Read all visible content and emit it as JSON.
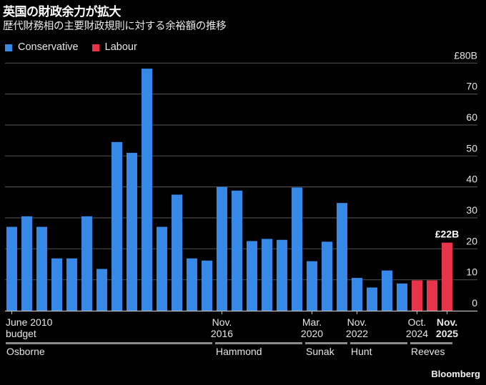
{
  "title": "英国の財政余力が拡大",
  "subtitle": "歴代財務相の主要財政規則に対する余裕額の推移",
  "source": "Bloomberg",
  "colors": {
    "Conservative": "#3689e6",
    "Labour": "#e8344a",
    "grid": "#4a4a4a",
    "axis": "#bfbfbf"
  },
  "chart_data": {
    "type": "bar",
    "title": "英国の財政余力が拡大",
    "subtitle": "歴代財務相の主要財政規則に対する余裕額の推移",
    "xlabel": "",
    "ylabel": "",
    "ylim": [
      0,
      80
    ],
    "yticks": [
      0,
      10,
      20,
      30,
      40,
      50,
      60,
      70,
      80
    ],
    "ytick_labels": [
      "0",
      "10",
      "20",
      "30",
      "40",
      "50",
      "60",
      "70",
      "£80B"
    ],
    "grid": true,
    "legend": {
      "placement": "top-left",
      "entries": [
        "Conservative",
        "Labour"
      ]
    },
    "values": [
      27.1,
      30.5,
      27.1,
      16.9,
      16.9,
      30.5,
      13.5,
      54.5,
      51.0,
      78.2,
      27.1,
      37.5,
      16.9,
      16.2,
      40.0,
      38.8,
      22.5,
      23.2,
      22.9,
      39.8,
      16.0,
      22.3,
      34.8,
      10.6,
      7.5,
      13.0,
      8.8,
      9.8,
      9.8,
      22.0
    ],
    "party": [
      "Conservative",
      "Conservative",
      "Conservative",
      "Conservative",
      "Conservative",
      "Conservative",
      "Conservative",
      "Conservative",
      "Conservative",
      "Conservative",
      "Conservative",
      "Conservative",
      "Conservative",
      "Conservative",
      "Conservative",
      "Conservative",
      "Conservative",
      "Conservative",
      "Conservative",
      "Conservative",
      "Conservative",
      "Conservative",
      "Conservative",
      "Conservative",
      "Conservative",
      "Conservative",
      "Conservative",
      "Labour",
      "Labour",
      "Labour"
    ],
    "annotations": [
      {
        "bar_index": 29,
        "text": "£22B"
      }
    ],
    "xtick_labels": [
      {
        "bar_index": 0,
        "lines": [
          "June 2010",
          "budget"
        ],
        "bold": false
      },
      {
        "bar_index": 14,
        "lines": [
          "Nov.",
          "2016"
        ],
        "bold": false
      },
      {
        "bar_index": 20,
        "lines": [
          "Mar.",
          "2020"
        ],
        "bold": false
      },
      {
        "bar_index": 23,
        "lines": [
          "Nov.",
          "2022"
        ],
        "bold": false
      },
      {
        "bar_index": 27,
        "lines": [
          "Oct.",
          "2024"
        ],
        "bold": false
      },
      {
        "bar_index": 29,
        "lines": [
          "Nov.",
          "2025"
        ],
        "bold": true
      }
    ],
    "chancellors": [
      {
        "name": "Osborne",
        "from": 0,
        "to": 13
      },
      {
        "name": "Hammond",
        "from": 14,
        "to": 19
      },
      {
        "name": "Sunak",
        "from": 20,
        "to": 22
      },
      {
        "name": "Hunt",
        "from": 23,
        "to": 26
      },
      {
        "name": "Reeves",
        "from": 27,
        "to": 29
      }
    ]
  }
}
